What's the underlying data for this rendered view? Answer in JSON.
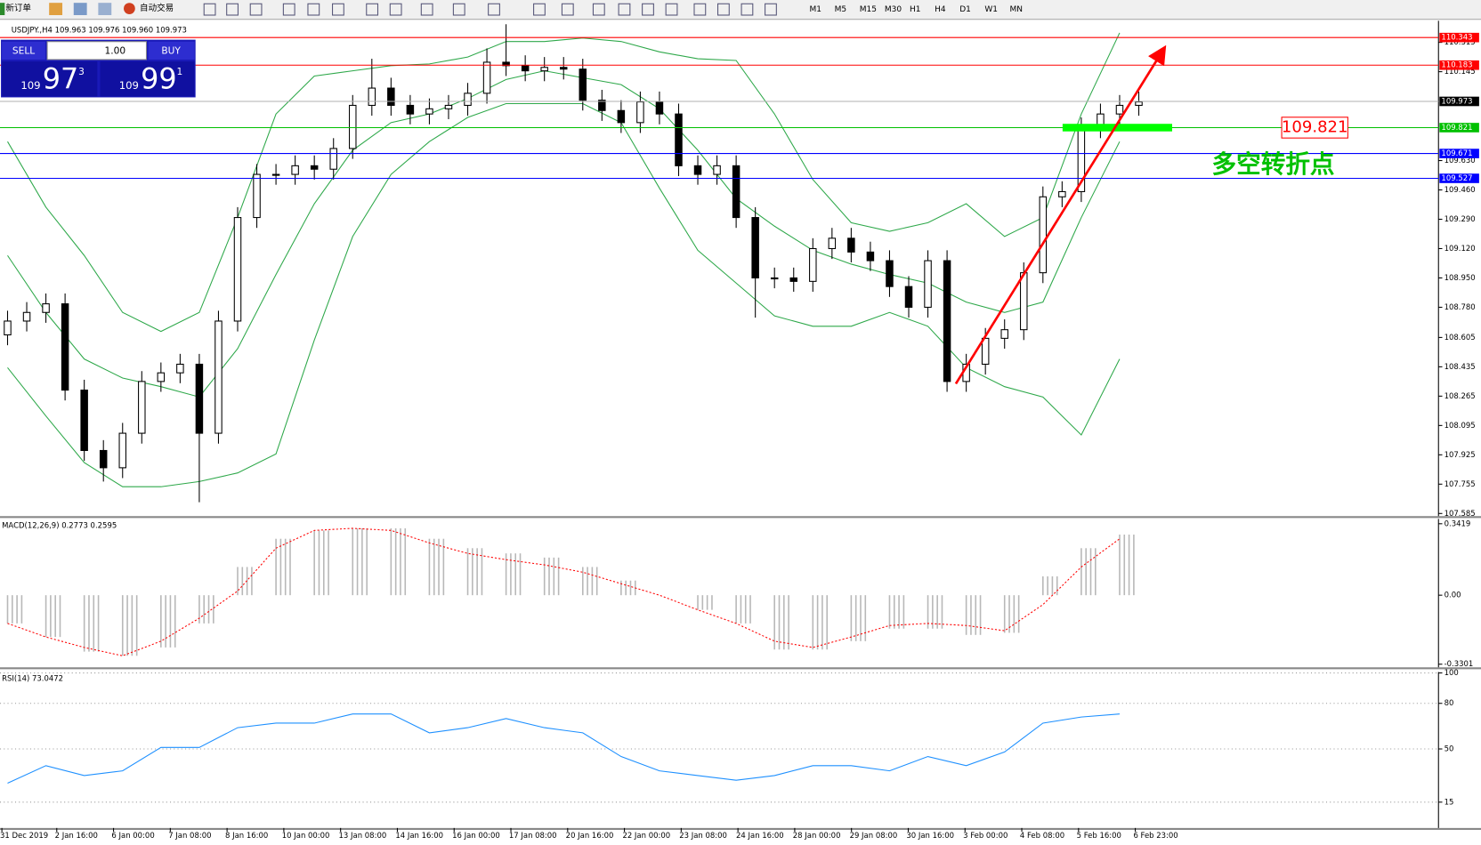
{
  "toolbar": {
    "new_order": "新订单",
    "auto_trading": "自动交易",
    "timeframes": [
      "M1",
      "M5",
      "M15",
      "M30",
      "H1",
      "H4",
      "D1",
      "W1",
      "MN"
    ]
  },
  "trade_panel": {
    "sell": "SELL",
    "lot": "1.00",
    "buy": "BUY",
    "sell_big": "109",
    "sell_main": "97",
    "sell_sup": "3",
    "buy_big": "109",
    "buy_main": "99",
    "buy_sup": "1"
  },
  "chart_data": [
    {
      "type": "candlestick",
      "title": "USDJPY.,H4 109.963 109.976 109.960 109.973",
      "ylim": [
        107.57,
        110.44
      ],
      "yticks": [
        110.315,
        110.145,
        {
          "value": 109.63,
          "label": "109.630"
        },
        {
          "value": 109.46,
          "label": "109.460"
        },
        {
          "value": 109.29,
          "label": "109.290"
        },
        {
          "value": 109.12,
          "label": "109.120"
        },
        {
          "value": 108.95,
          "label": "108.950"
        },
        {
          "value": 108.78,
          "label": "108.780"
        },
        108.605,
        108.435,
        108.265,
        108.095,
        107.925,
        107.755,
        107.585
      ],
      "open": [
        108.62,
        108.7,
        108.75,
        108.8,
        108.3,
        107.95,
        107.85,
        108.05,
        108.35,
        108.4,
        108.45,
        108.05,
        108.7,
        109.3,
        109.55,
        109.55,
        109.6,
        109.58,
        109.7,
        109.95,
        110.05,
        109.95,
        109.9,
        109.93,
        109.95,
        110.02,
        110.2,
        110.18,
        110.15,
        110.17,
        110.16,
        109.98,
        109.92,
        109.85,
        109.97,
        109.9,
        109.6,
        109.55,
        109.6,
        109.3,
        108.95,
        108.95,
        108.93,
        109.12,
        109.18,
        109.1,
        109.05,
        108.9,
        108.78,
        109.05,
        108.35,
        108.45,
        108.6,
        108.65,
        108.98,
        109.42,
        109.45,
        109.82,
        109.9,
        109.95
      ],
      "high": [
        108.76,
        108.81,
        108.86,
        108.86,
        108.36,
        108.01,
        108.11,
        108.41,
        108.46,
        108.51,
        108.51,
        108.76,
        109.36,
        109.61,
        109.61,
        109.66,
        109.66,
        109.76,
        110.01,
        110.22,
        110.11,
        110.01,
        109.99,
        110.01,
        110.08,
        110.28,
        110.42,
        110.24,
        110.23,
        110.23,
        110.22,
        110.04,
        109.98,
        110.03,
        110.03,
        109.96,
        109.66,
        109.66,
        109.66,
        109.36,
        109.01,
        109.01,
        109.18,
        109.24,
        109.24,
        109.16,
        109.11,
        108.96,
        109.11,
        109.11,
        108.51,
        108.66,
        108.71,
        109.04,
        109.48,
        109.51,
        109.88,
        109.96,
        110.01,
        110.03
      ],
      "low": [
        108.56,
        108.64,
        108.69,
        108.24,
        107.89,
        107.77,
        107.79,
        107.99,
        108.29,
        108.34,
        107.65,
        107.99,
        108.64,
        109.24,
        109.49,
        109.49,
        109.52,
        109.52,
        109.64,
        109.89,
        109.89,
        109.84,
        109.84,
        109.87,
        109.89,
        109.96,
        110.12,
        110.09,
        110.09,
        110.1,
        109.92,
        109.86,
        109.79,
        109.79,
        109.84,
        109.54,
        109.49,
        109.49,
        109.24,
        108.72,
        108.89,
        108.87,
        108.87,
        109.06,
        109.04,
        108.99,
        108.84,
        108.72,
        108.72,
        108.29,
        108.29,
        108.39,
        108.54,
        108.59,
        108.92,
        109.36,
        109.39,
        109.76,
        109.84,
        109.89
      ],
      "close": [
        108.7,
        108.75,
        108.8,
        108.3,
        107.95,
        107.85,
        108.05,
        108.35,
        108.4,
        108.45,
        108.05,
        108.7,
        109.3,
        109.55,
        109.55,
        109.6,
        109.58,
        109.7,
        109.95,
        110.05,
        109.95,
        109.9,
        109.93,
        109.95,
        110.02,
        110.2,
        110.18,
        110.15,
        110.17,
        110.16,
        109.98,
        109.92,
        109.85,
        109.97,
        109.9,
        109.6,
        109.55,
        109.6,
        109.3,
        108.95,
        108.95,
        108.93,
        109.12,
        109.18,
        109.1,
        109.05,
        108.9,
        108.78,
        109.05,
        108.35,
        108.45,
        108.6,
        108.65,
        108.98,
        109.42,
        109.45,
        109.82,
        109.9,
        109.95,
        109.97
      ],
      "bands": [
        {
          "color": "#2ea84a",
          "values": [
            109.74,
            109.36,
            109.08,
            108.75,
            108.64,
            108.75,
            109.3,
            109.9,
            110.12,
            110.15,
            110.18,
            110.19,
            110.23,
            110.32,
            110.32,
            110.34,
            110.32,
            110.26,
            110.22,
            110.21,
            109.9,
            109.52,
            109.27,
            109.22,
            109.27,
            109.38,
            109.19,
            109.3,
            109.9,
            110.37
          ]
        },
        {
          "color": "#2ea84a",
          "values": [
            109.08,
            108.75,
            108.48,
            108.37,
            108.32,
            108.26,
            108.54,
            108.97,
            109.38,
            109.69,
            109.85,
            109.9,
            109.99,
            110.1,
            110.15,
            110.11,
            110.07,
            109.93,
            109.69,
            109.41,
            109.25,
            109.11,
            109.03,
            108.97,
            108.92,
            108.81,
            108.75,
            108.81,
            109.3,
            109.74
          ]
        },
        {
          "color": "#2ea84a",
          "values": [
            108.43,
            108.15,
            107.88,
            107.74,
            107.74,
            107.77,
            107.82,
            107.93,
            108.59,
            109.19,
            109.55,
            109.74,
            109.88,
            109.96,
            109.96,
            109.96,
            109.85,
            109.47,
            109.11,
            108.92,
            108.73,
            108.67,
            108.67,
            108.75,
            108.67,
            108.43,
            108.32,
            108.26,
            108.04,
            108.48
          ]
        }
      ],
      "levels": [
        {
          "value": 110.343,
          "color": "#ff0000"
        },
        {
          "value": 110.183,
          "color": "#ff0000"
        },
        {
          "value": 109.973,
          "color": "#000000"
        },
        {
          "value": 109.821,
          "color": "#00c000"
        },
        {
          "value": 109.671,
          "color": "#0000ff"
        },
        {
          "value": 109.527,
          "color": "#0000ff"
        }
      ],
      "annotations": {
        "level_label": "109.821",
        "text": "多空转折点"
      },
      "time_labels": [
        "31 Dec 2019",
        "2 Jan 16:00",
        "6 Jan 00:00",
        "7 Jan 08:00",
        "8 Jan 16:00",
        "10 Jan 00:00",
        "13 Jan 08:00",
        "14 Jan 16:00",
        "16 Jan 00:00",
        "17 Jan 08:00",
        "20 Jan 16:00",
        "22 Jan 00:00",
        "23 Jan 08:00",
        "24 Jan 16:00",
        "28 Jan 00:00",
        "29 Jan 08:00",
        "30 Jan 16:00",
        "3 Feb 00:00",
        "4 Feb 08:00",
        "5 Feb 16:00",
        "6 Feb 23:00"
      ]
    },
    {
      "type": "macd",
      "title": "MACD(12,26,9) 0.2773 0.2595",
      "ylim": [
        -0.345,
        0.365
      ],
      "yticks": [
        0.3419,
        {
          "value": 0,
          "label": "0.00"
        },
        -0.3301
      ],
      "series": [
        {
          "name": "MACD",
          "color": "#b8b8b8",
          "values": [
            -0.135,
            -0.2,
            -0.27,
            -0.29,
            -0.25,
            -0.135,
            0.135,
            0.27,
            0.31,
            0.32,
            0.32,
            0.27,
            0.225,
            0.2,
            0.18,
            0.135,
            0.07,
            0,
            -0.07,
            -0.135,
            -0.26,
            -0.26,
            -0.22,
            -0.16,
            -0.16,
            -0.19,
            -0.18,
            0.09,
            0.225,
            0.29
          ]
        },
        {
          "name": "Signal",
          "color": "#ff0000",
          "values": [
            -0.135,
            -0.2,
            -0.25,
            -0.29,
            -0.22,
            -0.11,
            0.02,
            0.225,
            0.31,
            0.32,
            0.31,
            0.25,
            0.2,
            0.17,
            0.145,
            0.11,
            0.055,
            0,
            -0.07,
            -0.135,
            -0.22,
            -0.25,
            -0.2,
            -0.145,
            -0.135,
            -0.145,
            -0.17,
            -0.045,
            0.135,
            0.27
          ]
        }
      ]
    },
    {
      "type": "rsi",
      "title": "RSI(14) 73.0472",
      "ylim": [
        -2,
        100.6
      ],
      "yticks": [
        100,
        80,
        50,
        15
      ],
      "color": "#1e90ff",
      "values": [
        27.5,
        39,
        32.5,
        35.6,
        51,
        51,
        64,
        67,
        67,
        73,
        73,
        60.6,
        64,
        70,
        64,
        60.6,
        45,
        35.6,
        32.5,
        29.4,
        32.5,
        39,
        39,
        35.6,
        45,
        39,
        48,
        67,
        71,
        73
      ]
    }
  ]
}
